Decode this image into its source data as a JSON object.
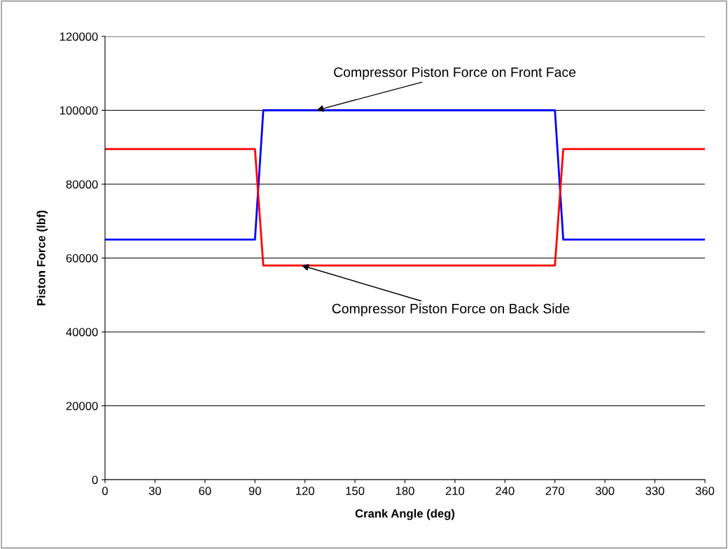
{
  "chart_data": {
    "type": "line",
    "xlabel": "Crank Angle (deg)",
    "ylabel": "Piston Force (lbf)",
    "x": [
      0,
      90,
      95,
      270,
      275,
      360
    ],
    "series": [
      {
        "color": "#0000ff",
        "values": [
          65000,
          65000,
          100000,
          100000,
          65000,
          65000
        ]
      },
      {
        "color": "#ff0000",
        "values": [
          89500,
          89500,
          58000,
          58000,
          89500,
          89500
        ]
      }
    ],
    "xlim": [
      0,
      360
    ],
    "xticks": [
      0,
      30,
      60,
      90,
      120,
      150,
      180,
      210,
      240,
      270,
      300,
      330,
      360
    ],
    "ylim": [
      0,
      120000
    ],
    "yticks": [
      0,
      20000,
      40000,
      60000,
      80000,
      100000,
      120000
    ],
    "grid": "y",
    "legend": false,
    "marker": "none",
    "line_style": "solid",
    "annotations": [
      {
        "text": "Compressor Piston Force on Front Face",
        "x": 127,
        "y": 100000
      },
      {
        "text": "Compressor Piston Force on Back Side",
        "x": 118,
        "y": 58000
      }
    ]
  }
}
